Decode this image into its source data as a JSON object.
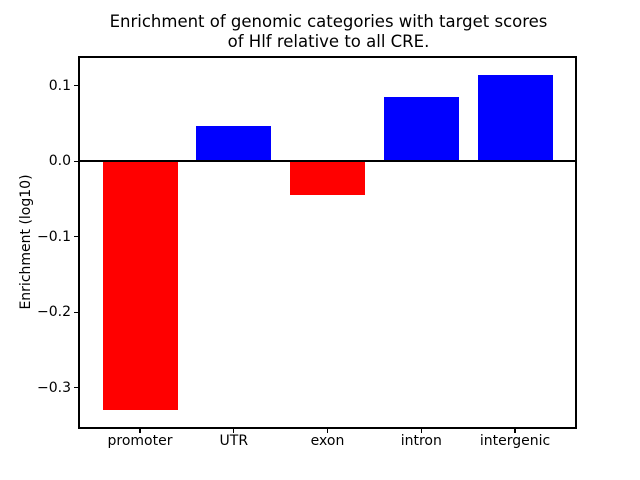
{
  "chart_data": {
    "type": "bar",
    "title": "Enrichment of genomic categories with target scores\nof Hlf relative to all CRE.",
    "xlabel": "",
    "ylabel": "Enrichment (log10)",
    "categories": [
      "promoter",
      "UTR",
      "exon",
      "intron",
      "intergenic"
    ],
    "values": [
      -0.33,
      0.047,
      -0.044,
      0.085,
      0.115
    ],
    "bar_colors": [
      "#ff0000",
      "#0000ff",
      "#ff0000",
      "#0000ff",
      "#0000ff"
    ],
    "positive_color": "#0000ff",
    "negative_color": "#ff0000",
    "bar_width": 0.8,
    "ylim": [
      -0.352,
      0.137
    ],
    "xlim": [
      -0.64,
      4.64
    ],
    "yticks": [
      0.1,
      0.0,
      -0.1,
      -0.2,
      -0.3
    ],
    "ytick_labels": [
      "0.1",
      "0.0",
      "−0.1",
      "−0.2",
      "−0.3"
    ],
    "grid": false,
    "legend": null,
    "zero_line": true,
    "axis_color": "#000000",
    "background_color": "#ffffff"
  }
}
